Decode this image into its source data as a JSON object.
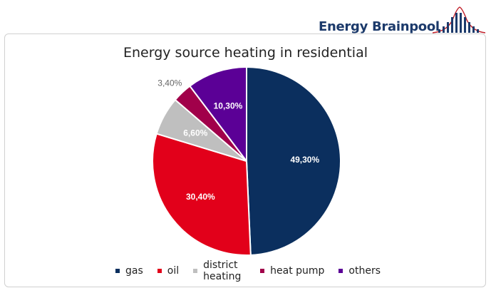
{
  "brand": {
    "name": "Energy Brainpool",
    "icon": "brainpool-tower-logo-icon",
    "text_color": "#1c3a6b",
    "mark_color": "#c0202a"
  },
  "chart_data": {
    "type": "pie",
    "title": "Energy source heating in residential",
    "categories": [
      "gas",
      "oil",
      "district heating",
      "heat pump",
      "others"
    ],
    "values": [
      49.3,
      30.4,
      6.6,
      3.4,
      10.3
    ],
    "value_labels": [
      "49,30%",
      "30,40%",
      "6,60%",
      "3,40%",
      "10,30%"
    ],
    "colors": [
      "#0b2f5e",
      "#e2001a",
      "#bfbfbf",
      "#a1004a",
      "#5b0096"
    ],
    "start": "12 o'clock",
    "direction": "clockwise",
    "order": [
      "gas",
      "oil",
      "district heating",
      "heat pump",
      "others"
    ],
    "legend": {
      "position": "bottom"
    }
  }
}
